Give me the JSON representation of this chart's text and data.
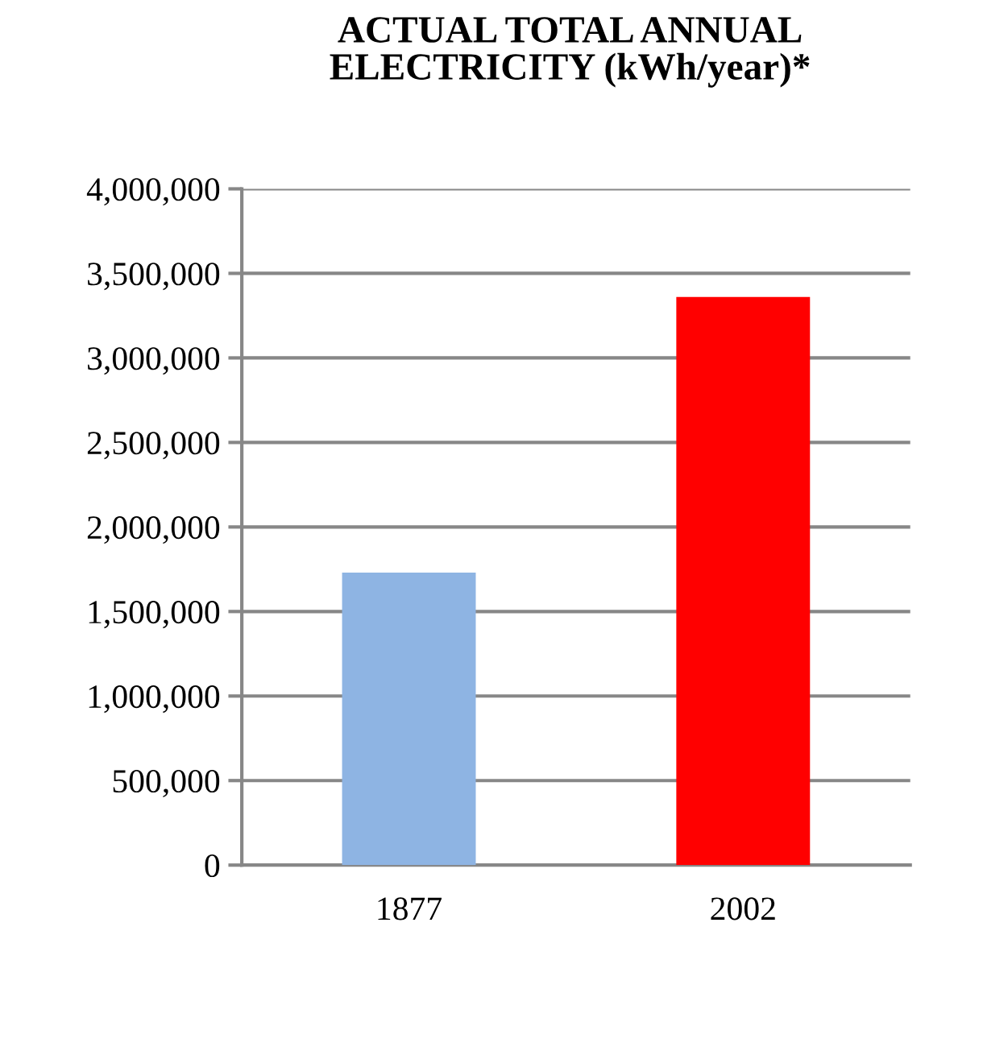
{
  "chart_data": {
    "type": "bar",
    "title": "ACTUAL TOTAL ANNUAL\nELECTRICITY (kWh/year)*",
    "categories": [
      "1877",
      "2002"
    ],
    "values": [
      1730000,
      3360000
    ],
    "colors": [
      "#8eb4e3",
      "#ff0000"
    ],
    "ylim": [
      0,
      4000000
    ],
    "yticks": [
      {
        "value": 0,
        "label": "0"
      },
      {
        "value": 500000,
        "label": "500,000"
      },
      {
        "value": 1000000,
        "label": "1,000,000"
      },
      {
        "value": 1500000,
        "label": "1,500,000"
      },
      {
        "value": 2000000,
        "label": "2,000,000"
      },
      {
        "value": 2500000,
        "label": "2,500,000"
      },
      {
        "value": 3000000,
        "label": "3,000,000"
      },
      {
        "value": 3500000,
        "label": "3,500,000"
      },
      {
        "value": 4000000,
        "label": "4,000,000"
      }
    ],
    "grid": "y"
  }
}
